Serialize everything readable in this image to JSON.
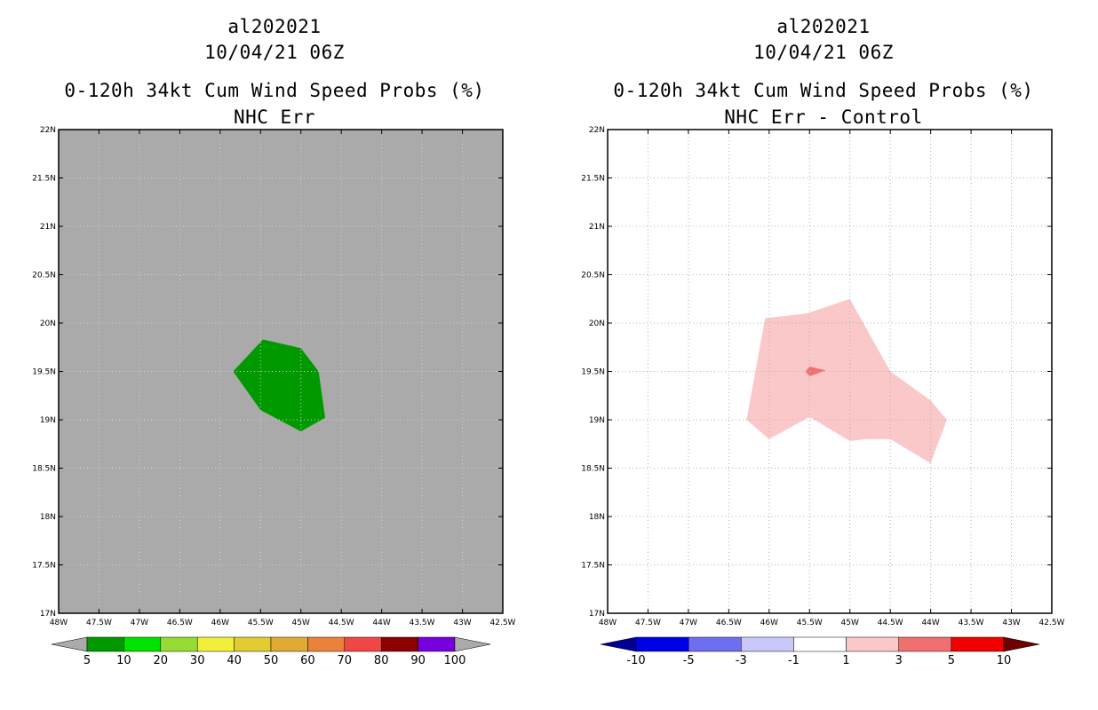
{
  "chart_data": [
    {
      "type": "heatmap",
      "title_lines": [
        "al202021",
        "10/04/21 06Z",
        "0-120h 34kt Cum Wind Speed Probs (%)",
        "NHC Err"
      ],
      "xlabel": "",
      "ylabel": "",
      "x_ticks": [
        "48W",
        "47.5W",
        "47W",
        "46.5W",
        "46W",
        "45.5W",
        "45W",
        "44.5W",
        "44W",
        "43.5W",
        "43W",
        "42.5W"
      ],
      "y_ticks": [
        "17N",
        "17.5N",
        "18N",
        "18.5N",
        "19N",
        "19.5N",
        "20N",
        "20.5N",
        "21N",
        "21.5N",
        "22N"
      ],
      "xlim_lon": [
        -48,
        -42.5
      ],
      "ylim_lat": [
        17,
        22
      ],
      "background_color": "#aaaaaa",
      "grid": true,
      "regions": [
        {
          "level": "5-10",
          "color": "#009a00",
          "polygon": [
            [
              -45.84,
              19.5
            ],
            [
              -45.47,
              19.83
            ],
            [
              -45.0,
              19.74
            ],
            [
              -44.78,
              19.5
            ],
            [
              -44.7,
              19.02
            ],
            [
              -45.0,
              18.88
            ],
            [
              -45.5,
              19.1
            ]
          ]
        }
      ],
      "colorbar": {
        "labels": [
          "5",
          "10",
          "20",
          "30",
          "40",
          "50",
          "60",
          "70",
          "80",
          "90",
          "100"
        ],
        "colors": [
          "#009a00",
          "#00e200",
          "#96dc32",
          "#f0f03c",
          "#e1cd32",
          "#e1aa32",
          "#eb823c",
          "#f04646",
          "#8c0000",
          "#7800dc"
        ],
        "end_left_color": "#aaaaaa",
        "end_right_color": "#aaaaaa"
      }
    },
    {
      "type": "heatmap",
      "title_lines": [
        "al202021",
        "10/04/21 06Z",
        "0-120h 34kt Cum Wind Speed Probs (%)",
        "NHC Err - Control"
      ],
      "xlabel": "",
      "ylabel": "",
      "x_ticks": [
        "48W",
        "47.5W",
        "47W",
        "46.5W",
        "46W",
        "45.5W",
        "45W",
        "44.5W",
        "44W",
        "43.5W",
        "43W",
        "42.5W"
      ],
      "y_ticks": [
        "17N",
        "17.5N",
        "18N",
        "18.5N",
        "19N",
        "19.5N",
        "20N",
        "20.5N",
        "21N",
        "21.5N",
        "22N"
      ],
      "xlim_lon": [
        -48,
        -42.5
      ],
      "ylim_lat": [
        17,
        22
      ],
      "background_color": "#ffffff",
      "grid": true,
      "regions": [
        {
          "level": "1-3",
          "color": "#fac8c8",
          "polygon": [
            [
              -46.28,
              19.0
            ],
            [
              -46.05,
              20.05
            ],
            [
              -45.53,
              20.1
            ],
            [
              -45.0,
              20.25
            ],
            [
              -44.5,
              19.5
            ],
            [
              -44.0,
              19.2
            ],
            [
              -43.8,
              19.0
            ],
            [
              -44.0,
              18.55
            ],
            [
              -44.5,
              18.8
            ],
            [
              -44.8,
              18.8
            ],
            [
              -45.0,
              18.78
            ],
            [
              -45.5,
              19.03
            ],
            [
              -46.0,
              18.8
            ]
          ]
        },
        {
          "level": "3-5",
          "color": "#f07070",
          "polygon": [
            [
              -45.55,
              19.5
            ],
            [
              -45.5,
              19.55
            ],
            [
              -45.3,
              19.51
            ],
            [
              -45.5,
              19.45
            ]
          ]
        }
      ],
      "colorbar": {
        "labels": [
          "-10",
          "-5",
          "-3",
          "-1",
          "1",
          "3",
          "5",
          "10"
        ],
        "colors": [
          "#0000e6",
          "#6e6ef0",
          "#c8c8fa",
          "#ffffff",
          "#fac8c8",
          "#f07070",
          "#f00000"
        ],
        "end_left_color": "#000096",
        "end_right_color": "#6e0000"
      }
    }
  ]
}
